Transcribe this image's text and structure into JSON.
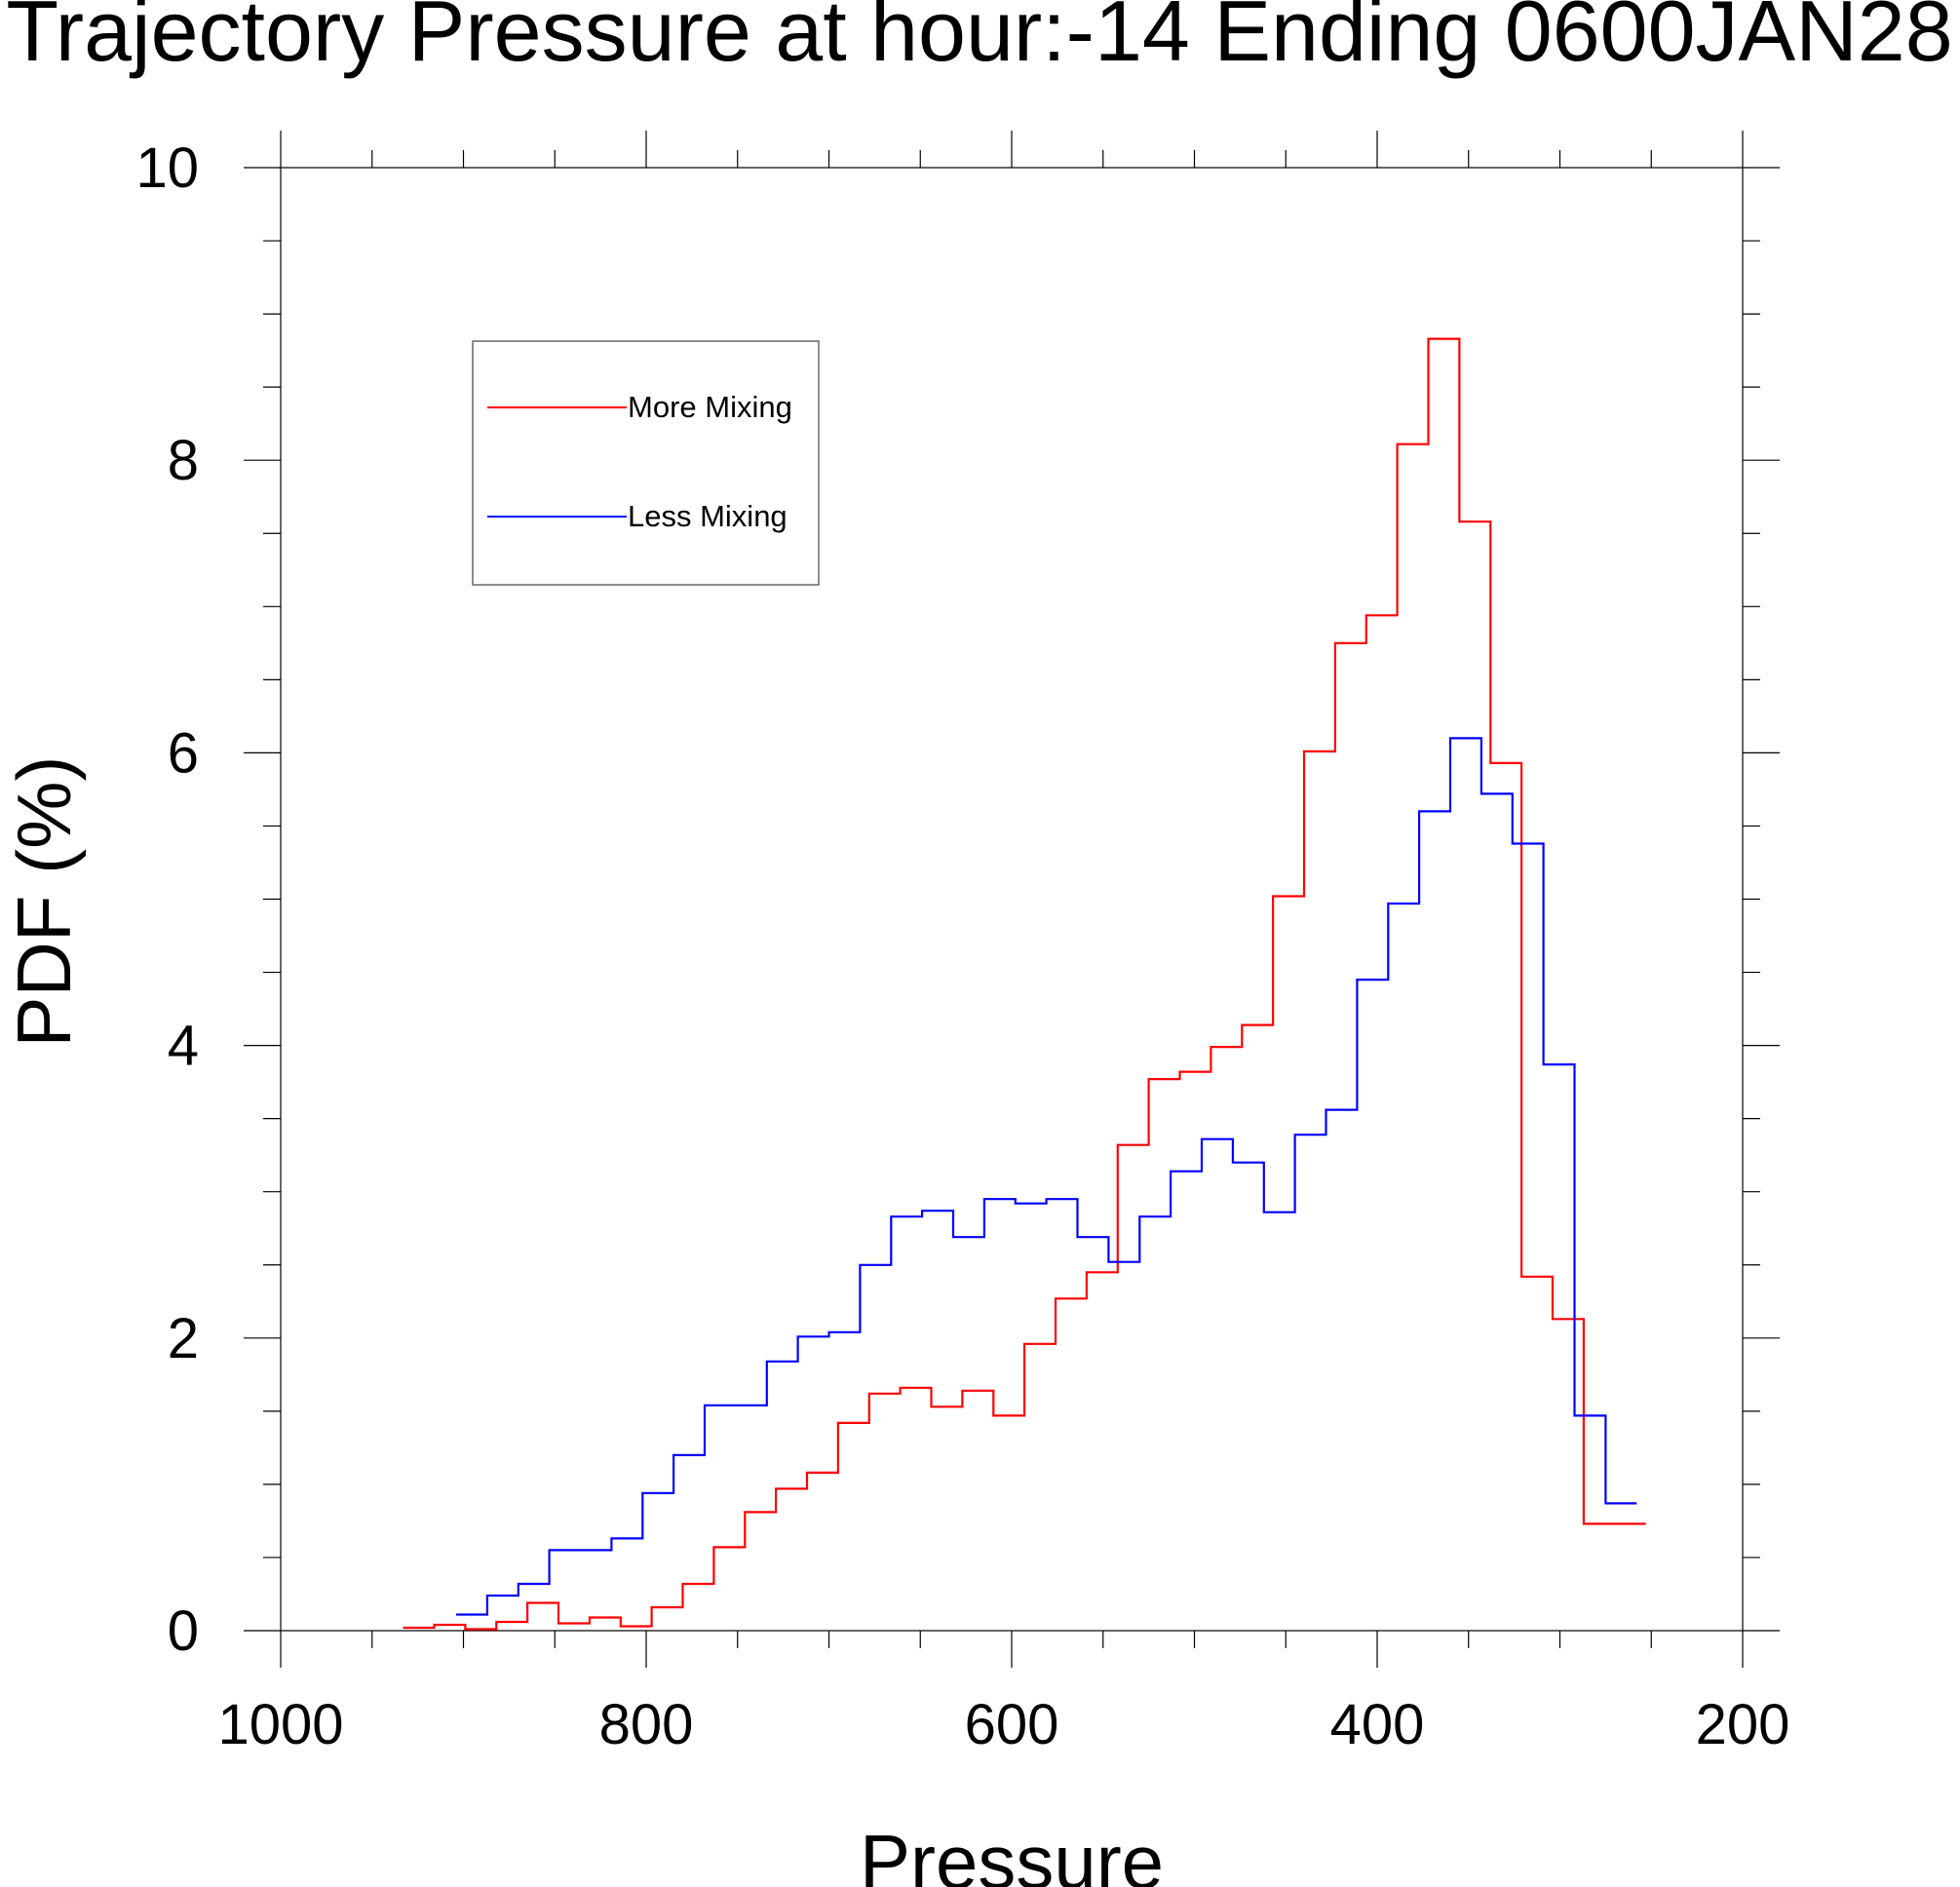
{
  "chart_data": {
    "type": "line",
    "style": "step",
    "title": "Trajectory Pressure at hour:-14 Ending 0600JAN28",
    "xlabel": "Pressure",
    "ylabel": "PDF (%)",
    "xlim": [
      1000,
      200
    ],
    "ylim": [
      0,
      10
    ],
    "x_reversed": true,
    "xticks": [
      "1000",
      "800",
      "600",
      "400",
      "200"
    ],
    "yticks": [
      "0",
      "2",
      "4",
      "6",
      "8",
      "10"
    ],
    "grid": false,
    "legend_position": "upper-left",
    "bin_width": 17,
    "series": [
      {
        "name": "More Mixing",
        "color": "#ff0000",
        "x": [
          933,
          916,
          899,
          882,
          865,
          848,
          831,
          814,
          797,
          780,
          763,
          746,
          729,
          712,
          695,
          678,
          661,
          644,
          627,
          610,
          593,
          576,
          559,
          542,
          525,
          508,
          491,
          474,
          457,
          440,
          423,
          406,
          389,
          372,
          355,
          338,
          321,
          304,
          287,
          270
        ],
        "values": [
          0.02,
          0.04,
          0.01,
          0.06,
          0.19,
          0.05,
          0.09,
          0.03,
          0.16,
          0.32,
          0.57,
          0.81,
          0.97,
          1.08,
          1.42,
          1.62,
          1.66,
          1.53,
          1.64,
          1.47,
          1.96,
          2.27,
          2.45,
          3.32,
          3.77,
          3.82,
          3.99,
          4.14,
          5.02,
          6.01,
          6.75,
          6.94,
          8.11,
          8.83,
          7.58,
          5.93,
          2.42,
          2.13,
          0.73,
          0.73
        ]
      },
      {
        "name": "Less Mixing",
        "color": "#0000ff",
        "x": [
          904,
          887,
          870,
          853,
          836,
          819,
          802,
          785,
          768,
          751,
          734,
          717,
          700,
          683,
          666,
          649,
          632,
          615,
          598,
          581,
          564,
          547,
          530,
          513,
          496,
          479,
          462,
          445,
          428,
          411,
          394,
          377,
          360,
          343,
          326,
          309,
          292,
          275
        ],
        "values": [
          0.11,
          0.24,
          0.32,
          0.55,
          0.55,
          0.63,
          0.94,
          1.2,
          1.54,
          1.54,
          1.84,
          2.01,
          2.04,
          2.5,
          2.83,
          2.87,
          2.69,
          2.95,
          2.92,
          2.95,
          2.69,
          2.52,
          2.83,
          3.14,
          3.36,
          3.2,
          2.86,
          3.39,
          3.56,
          4.45,
          4.97,
          5.6,
          6.1,
          5.72,
          5.38,
          3.87,
          1.47,
          0.87
        ]
      }
    ]
  }
}
